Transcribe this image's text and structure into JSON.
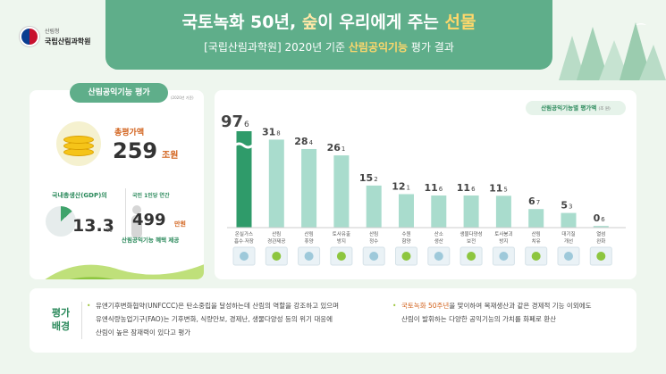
{
  "logo": {
    "sub": "산림청",
    "main": "국립산림과학원"
  },
  "header": {
    "title_a": "국토녹화 50년, ",
    "title_b": "숲",
    "title_c": "이 우리에게 주는 ",
    "title_d": "선물",
    "subtitle_a": "[국립산림과학원] 2020년 기준 ",
    "subtitle_b": "산림공익기능",
    "subtitle_c": " 평가 결과"
  },
  "left": {
    "badge": "산림공익기능 평가",
    "note": "(2020년 기준)",
    "total_label": "총평가액",
    "total_value": "259",
    "total_unit": "조원",
    "gdp_label": "국내총생산(GDP)의",
    "gdp_value": "13.3",
    "gdp_unit": "%",
    "gdp_share": 13.3,
    "percap_label": "국민 1인당 연간",
    "percap_value": "499",
    "percap_unit": "만원",
    "percap_sub": "산림공익기능 혜택 제공"
  },
  "chart_header": {
    "title": "산림공익기능별 평가액",
    "unit": "(조 원)"
  },
  "chart_data": {
    "type": "bar",
    "title": "산림공익기능별 평가액",
    "unit": "(조 원)",
    "categories": [
      [
        "온실가스",
        "흡수·저장"
      ],
      [
        "산림",
        "경관제공"
      ],
      [
        "산림",
        "휴양"
      ],
      [
        "토사유출",
        "방지"
      ],
      [
        "산림",
        "정수"
      ],
      [
        "수원",
        "함양"
      ],
      [
        "산소",
        "생산"
      ],
      [
        "생물다양성",
        "보전"
      ],
      [
        "토사붕괴",
        "방지"
      ],
      [
        "산림",
        "치유"
      ],
      [
        "대기질",
        "개선"
      ],
      [
        "열섬",
        "완화"
      ]
    ],
    "values": [
      97.6,
      31.8,
      28.4,
      26.1,
      15.2,
      12.1,
      11.6,
      11.6,
      11.5,
      6.7,
      5.3,
      0.6
    ],
    "labels_int": [
      "97",
      "31",
      "28",
      "26",
      "15",
      "12",
      "11",
      "11",
      "11",
      "6",
      "5",
      "0"
    ],
    "labels_dec": [
      "6",
      "8",
      "4",
      "1",
      "2",
      "1",
      "6",
      "6",
      "5",
      "7",
      "3",
      "6"
    ],
    "axis_break": true,
    "colors": {
      "highlight": "#2f9b6a",
      "normal": "#a9dccd"
    }
  },
  "bottom": {
    "title": "평가 배경",
    "left_lines": [
      "유엔기후변화협약(UNFCCC)은 탄소중립을 달성하는데 산림의 역할을 강조하고 있으며",
      "유엔식량농업기구(FAO)는 기후변화, 식량안보, 경제난, 생물다양성 등의 위기 대응에",
      "산림이 높은 잠재력이 있다고 평가"
    ],
    "right_hl": "국토녹화 50주년",
    "right_line1": "을 맞이하여 목재생산과 같은 경제적 기능 이외에도",
    "right_line2": "산림이 발휘하는 다양한 공익기능의 가치를 화폐로 환산"
  }
}
